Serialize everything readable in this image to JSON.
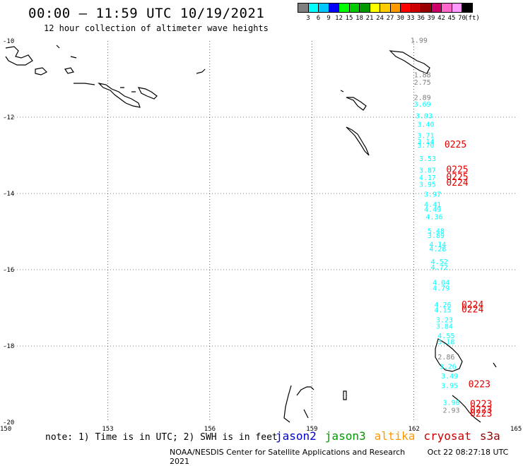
{
  "title": "00:00 – 11:59 UTC 10/19/2021",
  "subtitle": "12 hour collection of altimeter wave heights",
  "scale": {
    "colors": [
      "#7f7f7f",
      "#00ffff",
      "#00c8ff",
      "#0000ff",
      "#00ff00",
      "#00cc00",
      "#009900",
      "#ffff00",
      "#ffcc00",
      "#ff9900",
      "#ff0000",
      "#cc0000",
      "#990000",
      "#cc0066",
      "#ff66cc",
      "#ff99ff",
      "#000000"
    ],
    "labels": [
      "3",
      "6",
      "9",
      "12",
      "15",
      "18",
      "21",
      "24",
      "27",
      "30",
      "33",
      "36",
      "39",
      "42",
      "45",
      "70",
      "(ft)"
    ]
  },
  "axes": {
    "y_labels": [
      "-10",
      "-12",
      "-14",
      "-16",
      "-18",
      "-20"
    ],
    "x_labels": [
      "150",
      "153",
      "156",
      "159",
      "162",
      "165"
    ]
  },
  "swh_points": [
    {
      "v": "1.99",
      "c": "#7f7f7f",
      "lat": -10.05,
      "lon": 161.9
    },
    {
      "v": "1.88",
      "c": "#7f7f7f",
      "lat": -10.95,
      "lon": 162.0
    },
    {
      "v": "2.75",
      "c": "#7f7f7f",
      "lat": -11.15,
      "lon": 162.0
    },
    {
      "v": "2.89",
      "c": "#7f7f7f",
      "lat": -11.55,
      "lon": 162.0
    },
    {
      "v": "3.69",
      "c": "#00ffff",
      "lat": -11.72,
      "lon": 162.0
    },
    {
      "v": "3.93",
      "c": "#00ffff",
      "lat": -12.03,
      "lon": 162.05
    },
    {
      "v": "3.40",
      "c": "#00ffff",
      "lat": -12.25,
      "lon": 162.1
    },
    {
      "v": "3.71",
      "c": "#00ffff",
      "lat": -12.55,
      "lon": 162.1
    },
    {
      "v": "3.14",
      "c": "#00ffff",
      "lat": -12.7,
      "lon": 162.1
    },
    {
      "v": "3.70",
      "c": "#00ffff",
      "lat": -12.8,
      "lon": 162.1
    },
    {
      "v": "3.53",
      "c": "#00ffff",
      "lat": -13.15,
      "lon": 162.15
    },
    {
      "v": "3.87",
      "c": "#00ffff",
      "lat": -13.45,
      "lon": 162.15
    },
    {
      "v": "4.17",
      "c": "#00ffff",
      "lat": -13.65,
      "lon": 162.15
    },
    {
      "v": "3.95",
      "c": "#00ffff",
      "lat": -13.82,
      "lon": 162.15
    },
    {
      "v": "3.97",
      "c": "#00ffff",
      "lat": -14.08,
      "lon": 162.3
    },
    {
      "v": "4.41",
      "c": "#00ffff",
      "lat": -14.35,
      "lon": 162.3
    },
    {
      "v": "4.49",
      "c": "#00ffff",
      "lat": -14.48,
      "lon": 162.3
    },
    {
      "v": "4.36",
      "c": "#00ffff",
      "lat": -14.68,
      "lon": 162.35
    },
    {
      "v": "5.48",
      "c": "#00ffff",
      "lat": -15.05,
      "lon": 162.4
    },
    {
      "v": "3.89",
      "c": "#00ffff",
      "lat": -15.17,
      "lon": 162.4
    },
    {
      "v": "4.14",
      "c": "#00ffff",
      "lat": -15.4,
      "lon": 162.45
    },
    {
      "v": "4.28",
      "c": "#00ffff",
      "lat": -15.52,
      "lon": 162.45
    },
    {
      "v": "4.52",
      "c": "#00ffff",
      "lat": -15.85,
      "lon": 162.5
    },
    {
      "v": "4.72",
      "c": "#00ffff",
      "lat": -16.0,
      "lon": 162.5
    },
    {
      "v": "4.04",
      "c": "#00ffff",
      "lat": -16.4,
      "lon": 162.55
    },
    {
      "v": "4.79",
      "c": "#00ffff",
      "lat": -16.55,
      "lon": 162.55
    },
    {
      "v": "4.26",
      "c": "#00ffff",
      "lat": -16.98,
      "lon": 162.6
    },
    {
      "v": "4.15",
      "c": "#00ffff",
      "lat": -17.12,
      "lon": 162.6
    },
    {
      "v": "3.23",
      "c": "#00ffff",
      "lat": -17.38,
      "lon": 162.65
    },
    {
      "v": "3.84",
      "c": "#00ffff",
      "lat": -17.55,
      "lon": 162.65
    },
    {
      "v": "4.55",
      "c": "#00ffff",
      "lat": -17.8,
      "lon": 162.7
    },
    {
      "v": "3.18",
      "c": "#00ffff",
      "lat": -17.95,
      "lon": 162.7
    },
    {
      "v": "2.86",
      "c": "#7f7f7f",
      "lat": -18.35,
      "lon": 162.7
    },
    {
      "v": "3.26",
      "c": "#00ffff",
      "lat": -18.6,
      "lon": 162.75
    },
    {
      "v": "3.49",
      "c": "#00ffff",
      "lat": -18.85,
      "lon": 162.8
    },
    {
      "v": "3.95",
      "c": "#00ffff",
      "lat": -19.1,
      "lon": 162.8
    },
    {
      "v": "3.96",
      "c": "#00ffff",
      "lat": -19.55,
      "lon": 162.85
    },
    {
      "v": "2.93",
      "c": "#7f7f7f",
      "lat": -19.75,
      "lon": 162.85
    }
  ],
  "time_labels": [
    {
      "t": "0225",
      "lat": -12.8,
      "lon": 162.9
    },
    {
      "t": "0225",
      "lat": -13.45,
      "lon": 162.95
    },
    {
      "t": "0225",
      "lat": -13.65,
      "lon": 162.95
    },
    {
      "t": "0224",
      "lat": -13.8,
      "lon": 162.95
    },
    {
      "t": "0224",
      "lat": -17.0,
      "lon": 163.4
    },
    {
      "t": "0224",
      "lat": -17.12,
      "lon": 163.4
    },
    {
      "t": "0223",
      "lat": -19.08,
      "lon": 163.6
    },
    {
      "t": "0223",
      "lat": -19.6,
      "lon": 163.65
    },
    {
      "t": "0223",
      "lat": -19.75,
      "lon": 163.65
    },
    {
      "t": "0223",
      "lat": -19.85,
      "lon": 163.65
    }
  ],
  "note": "note: 1) Time is in UTC; 2) SWH is in feet",
  "satellites": [
    {
      "name": "jason2",
      "color": "#0000cc"
    },
    {
      "name": "jason3",
      "color": "#009900"
    },
    {
      "name": "altika",
      "color": "#ff9900"
    },
    {
      "name": "cryosat",
      "color": "#cc0000"
    },
    {
      "name": "s3a",
      "color": "#990000"
    }
  ],
  "footer": {
    "org": "NOAA/NESDIS Center for Satellite Applications and Research",
    "timestamp": "Oct 22 08:27:18 UTC 2021"
  }
}
